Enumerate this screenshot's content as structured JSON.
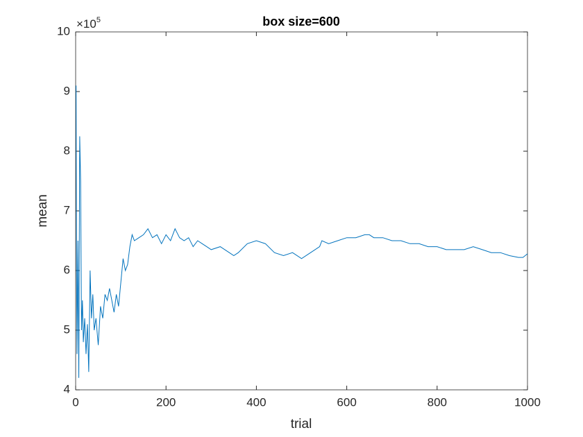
{
  "chart_data": {
    "type": "line",
    "title": "box size=600",
    "xlabel": "trial",
    "ylabel": "mean",
    "y_multiplier": {
      "base": "×10",
      "exponent": "5"
    },
    "x": [
      1,
      2,
      3,
      5,
      7,
      9,
      11,
      13,
      15,
      17,
      20,
      23,
      26,
      29,
      32,
      35,
      38,
      41,
      45,
      50,
      55,
      60,
      65,
      70,
      75,
      80,
      85,
      90,
      95,
      100,
      105,
      110,
      115,
      120,
      125,
      130,
      140,
      150,
      160,
      170,
      180,
      190,
      200,
      210,
      220,
      230,
      240,
      250,
      260,
      270,
      280,
      290,
      300,
      320,
      340,
      350,
      360,
      380,
      400,
      420,
      440,
      460,
      480,
      500,
      520,
      540,
      545,
      560,
      580,
      600,
      620,
      640,
      650,
      660,
      680,
      700,
      720,
      740,
      760,
      780,
      800,
      820,
      840,
      860,
      880,
      900,
      920,
      940,
      960,
      980,
      990,
      1000
    ],
    "series": [
      {
        "name": "mean",
        "color": "#0072bd",
        "values": [
          9.1,
          6.0,
          4.6,
          6.5,
          4.2,
          8.25,
          7.5,
          5.0,
          5.5,
          4.8,
          5.2,
          4.6,
          5.1,
          4.3,
          6.0,
          5.2,
          5.6,
          5.0,
          5.2,
          4.75,
          5.4,
          5.2,
          5.6,
          5.5,
          5.7,
          5.5,
          5.3,
          5.6,
          5.4,
          5.8,
          6.2,
          6.0,
          6.1,
          6.4,
          6.6,
          6.5,
          6.55,
          6.6,
          6.7,
          6.55,
          6.6,
          6.45,
          6.6,
          6.5,
          6.7,
          6.55,
          6.5,
          6.55,
          6.4,
          6.5,
          6.45,
          6.4,
          6.35,
          6.4,
          6.3,
          6.25,
          6.3,
          6.45,
          6.5,
          6.45,
          6.3,
          6.25,
          6.3,
          6.2,
          6.3,
          6.4,
          6.5,
          6.45,
          6.5,
          6.55,
          6.55,
          6.6,
          6.6,
          6.55,
          6.55,
          6.5,
          6.5,
          6.45,
          6.45,
          6.4,
          6.4,
          6.35,
          6.35,
          6.35,
          6.4,
          6.35,
          6.3,
          6.3,
          6.25,
          6.22,
          6.22,
          6.28
        ]
      }
    ],
    "xlim": [
      0,
      1000
    ],
    "xticks": [
      0,
      200,
      400,
      600,
      800,
      1000
    ],
    "ylim": [
      4,
      10
    ],
    "yticks": [
      4,
      5,
      6,
      7,
      8,
      9,
      10
    ],
    "grid": false
  }
}
